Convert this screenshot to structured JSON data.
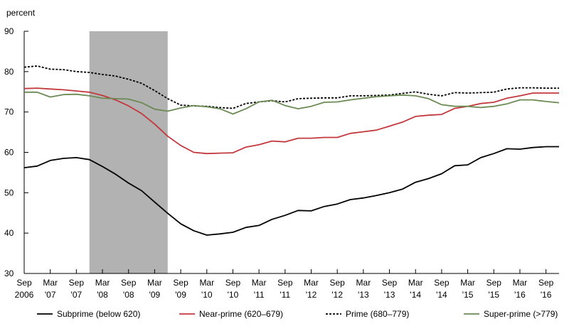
{
  "chart_data": {
    "type": "line",
    "y_unit_label": "percent",
    "ylim": [
      30,
      90
    ],
    "y_ticks": [
      30,
      40,
      50,
      60,
      70,
      80,
      90
    ],
    "x_start": "2006-09",
    "x_end": "2016-12",
    "x_ticks": [
      {
        "date": "2006-09",
        "line1": "Sep",
        "line2": "2006"
      },
      {
        "date": "2007-03",
        "line1": "Mar",
        "line2": "'07"
      },
      {
        "date": "2007-09",
        "line1": "Sep",
        "line2": "'07"
      },
      {
        "date": "2008-03",
        "line1": "Mar",
        "line2": "'08"
      },
      {
        "date": "2008-09",
        "line1": "Sep",
        "line2": "'08"
      },
      {
        "date": "2009-03",
        "line1": "Mar",
        "line2": "'09"
      },
      {
        "date": "2009-09",
        "line1": "Sep",
        "line2": "'09"
      },
      {
        "date": "2010-03",
        "line1": "Mar",
        "line2": "'10"
      },
      {
        "date": "2010-09",
        "line1": "Sep",
        "line2": "'10"
      },
      {
        "date": "2011-03",
        "line1": "Mar",
        "line2": "'11"
      },
      {
        "date": "2011-09",
        "line1": "Sep",
        "line2": "'11"
      },
      {
        "date": "2012-03",
        "line1": "Mar",
        "line2": "'12"
      },
      {
        "date": "2012-09",
        "line1": "Sep",
        "line2": "'12"
      },
      {
        "date": "2013-03",
        "line1": "Mar",
        "line2": "'13"
      },
      {
        "date": "2013-09",
        "line1": "Sep",
        "line2": "'13"
      },
      {
        "date": "2014-03",
        "line1": "Mar",
        "line2": "'14"
      },
      {
        "date": "2014-09",
        "line1": "Sep",
        "line2": "'14"
      },
      {
        "date": "2015-03",
        "line1": "Mar",
        "line2": "'15"
      },
      {
        "date": "2015-09",
        "line1": "Sep",
        "line2": "'15"
      },
      {
        "date": "2016-03",
        "line1": "Mar",
        "line2": "'16"
      },
      {
        "date": "2016-09",
        "line1": "Sep",
        "line2": "'16"
      }
    ],
    "recession": {
      "start": "2007-12",
      "end": "2009-06",
      "color": "#b2b2b2"
    },
    "grid": false,
    "legend_position": "bottom",
    "dates": [
      "2006-09",
      "2006-12",
      "2007-03",
      "2007-06",
      "2007-09",
      "2007-12",
      "2008-03",
      "2008-06",
      "2008-09",
      "2008-12",
      "2009-03",
      "2009-06",
      "2009-09",
      "2009-12",
      "2010-03",
      "2010-06",
      "2010-09",
      "2010-12",
      "2011-03",
      "2011-06",
      "2011-09",
      "2011-12",
      "2012-03",
      "2012-06",
      "2012-09",
      "2012-12",
      "2013-03",
      "2013-06",
      "2013-09",
      "2013-12",
      "2014-03",
      "2014-06",
      "2014-09",
      "2014-12",
      "2015-03",
      "2015-06",
      "2015-09",
      "2015-12",
      "2016-03",
      "2016-06",
      "2016-09",
      "2016-12"
    ],
    "series": [
      {
        "name": "Subprime (below 620)",
        "color": "#000000",
        "dash": "solid",
        "values": [
          56.2,
          56.6,
          58.0,
          58.5,
          58.7,
          58.2,
          56.5,
          54.6,
          52.4,
          50.5,
          47.7,
          44.9,
          42.3,
          40.6,
          39.5,
          39.8,
          40.2,
          41.4,
          41.9,
          43.4,
          44.4,
          45.6,
          45.5,
          46.6,
          47.2,
          48.3,
          48.7,
          49.3,
          50.0,
          50.9,
          52.6,
          53.5,
          54.7,
          56.7,
          56.9,
          58.7,
          59.7,
          60.9,
          60.8,
          61.2,
          61.4,
          61.4
        ]
      },
      {
        "name": "Near-prime (620–679)",
        "color": "#c2383d",
        "dash": "solid",
        "values": [
          75.8,
          75.9,
          75.7,
          75.5,
          75.2,
          74.9,
          74.1,
          73.0,
          71.5,
          69.6,
          67.0,
          64.0,
          61.7,
          60.0,
          59.7,
          59.8,
          59.9,
          61.3,
          61.9,
          62.8,
          62.6,
          63.5,
          63.5,
          63.7,
          63.7,
          64.7,
          65.1,
          65.5,
          66.5,
          67.5,
          68.9,
          69.2,
          69.4,
          70.9,
          71.4,
          72.1,
          72.4,
          73.4,
          74.0,
          74.7,
          74.7,
          74.7
        ]
      },
      {
        "name": "Prime (680–779)",
        "color": "#000000",
        "dash": "dotted",
        "values": [
          81.1,
          81.4,
          80.6,
          80.5,
          80.0,
          79.8,
          79.3,
          78.9,
          78.1,
          77.1,
          75.3,
          73.3,
          71.7,
          71.5,
          71.4,
          71.1,
          70.9,
          72.1,
          72.5,
          72.8,
          72.5,
          73.3,
          73.4,
          73.5,
          73.5,
          74.0,
          74.0,
          74.1,
          74.2,
          74.6,
          75.0,
          74.4,
          74.0,
          74.8,
          74.7,
          74.8,
          74.9,
          75.7,
          76.0,
          76.0,
          75.9,
          75.9
        ]
      },
      {
        "name": "Super-prime (>779)",
        "color": "#6b8a54",
        "dash": "solid",
        "values": [
          74.9,
          74.9,
          73.7,
          74.3,
          74.4,
          74.0,
          73.4,
          73.3,
          73.2,
          72.3,
          70.7,
          70.2,
          71.0,
          71.6,
          71.3,
          70.8,
          69.5,
          70.8,
          72.5,
          72.9,
          71.6,
          70.8,
          71.4,
          72.4,
          72.5,
          73.0,
          73.4,
          73.8,
          74.0,
          74.2,
          74.0,
          73.3,
          71.8,
          71.4,
          71.4,
          71.1,
          71.4,
          72.0,
          73.0,
          73.0,
          72.6,
          72.3
        ]
      }
    ]
  }
}
